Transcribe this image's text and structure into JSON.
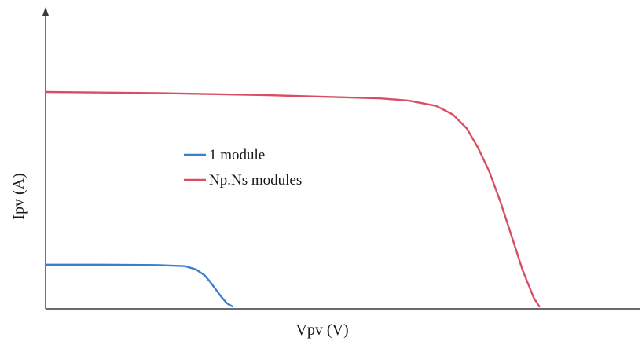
{
  "chart_data": {
    "type": "line",
    "title": "",
    "xlabel": "Vpv (V)",
    "ylabel": "Ipv (A)",
    "xlim": [
      0,
      100
    ],
    "ylim": [
      0,
      100
    ],
    "grid": false,
    "axis_ticks": "none",
    "legend_position": "center-left",
    "series": [
      {
        "name": "1 module",
        "color": "#3b7fd0",
        "x": [
          0,
          10,
          20,
          25,
          27,
          28.5,
          29.5,
          30.5,
          31.5,
          32.5,
          33.5
        ],
        "y": [
          19.5,
          19.5,
          19.3,
          18.8,
          17.2,
          14.5,
          11.5,
          8,
          4.5,
          1.5,
          0
        ]
      },
      {
        "name": "Np.Ns modules",
        "color": "#d84f63",
        "x": [
          0,
          20,
          40,
          60,
          65,
          70,
          73,
          75.5,
          77.5,
          79.5,
          81.5,
          83.5,
          85.5,
          87.5,
          88.5
        ],
        "y": [
          100,
          99.5,
          98.5,
          97,
          96,
          93.5,
          89.5,
          83,
          74,
          63,
          49,
          33,
          17,
          4,
          0
        ]
      }
    ]
  }
}
